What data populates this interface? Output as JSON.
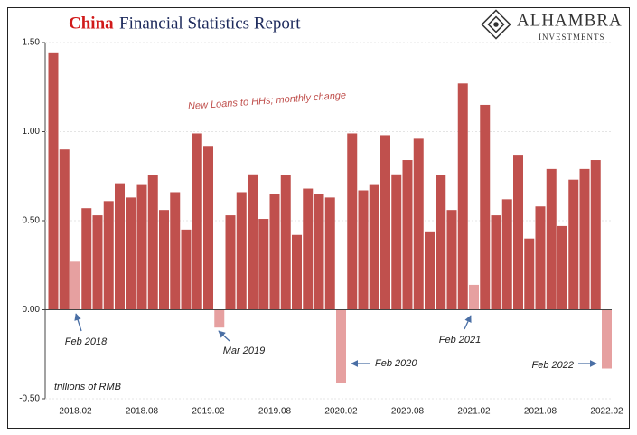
{
  "chart_data": {
    "type": "bar",
    "title_highlight": "China",
    "title": "Financial Statistics Report",
    "logo": {
      "name": "ALHAMBRA",
      "tagline": "INVESTMENTS"
    },
    "series_label": "New Loans to HHs; monthly change",
    "unit_label": "trillions of RMB",
    "categories": [
      null,
      null,
      "2018.02",
      null,
      null,
      null,
      null,
      null,
      "2018.08",
      null,
      null,
      null,
      null,
      null,
      "2019.02",
      null,
      null,
      null,
      null,
      null,
      "2019.08",
      null,
      null,
      null,
      null,
      null,
      "2020.02",
      null,
      null,
      null,
      null,
      null,
      "2020.08",
      null,
      null,
      null,
      null,
      null,
      "2021.02",
      null,
      null,
      null,
      null,
      null,
      "2021.08",
      null,
      null,
      null,
      null,
      null,
      "2022.02"
    ],
    "values": [
      1.44,
      0.9,
      0.27,
      0.57,
      0.53,
      0.61,
      0.71,
      0.63,
      0.7,
      0.755,
      0.56,
      0.66,
      0.45,
      0.99,
      0.92,
      -0.1,
      0.53,
      0.66,
      0.76,
      0.51,
      0.65,
      0.755,
      0.42,
      0.68,
      0.65,
      0.63,
      -0.41,
      0.99,
      0.67,
      0.7,
      0.98,
      0.76,
      0.84,
      0.96,
      0.44,
      0.755,
      0.56,
      1.27,
      0.14,
      1.15,
      0.53,
      0.62,
      0.87,
      0.4,
      0.58,
      0.79,
      0.47,
      0.73,
      0.79,
      0.84,
      -0.33
    ],
    "colors": [
      "#c0504d",
      "#c0504d",
      "#e6a0a0",
      "#c0504d",
      "#c0504d",
      "#c0504d",
      "#c0504d",
      "#c0504d",
      "#c0504d",
      "#c0504d",
      "#c0504d",
      "#c0504d",
      "#c0504d",
      "#c0504d",
      "#c0504d",
      "#e6a0a0",
      "#c0504d",
      "#c0504d",
      "#c0504d",
      "#c0504d",
      "#c0504d",
      "#c0504d",
      "#c0504d",
      "#c0504d",
      "#c0504d",
      "#c0504d",
      "#e6a0a0",
      "#c0504d",
      "#c0504d",
      "#c0504d",
      "#c0504d",
      "#c0504d",
      "#c0504d",
      "#c0504d",
      "#c0504d",
      "#c0504d",
      "#c0504d",
      "#c0504d",
      "#e6a0a0",
      "#c0504d",
      "#c0504d",
      "#c0504d",
      "#c0504d",
      "#c0504d",
      "#c0504d",
      "#c0504d",
      "#c0504d",
      "#c0504d",
      "#c0504d",
      "#c0504d",
      "#e6a0a0"
    ],
    "ylim": [
      -0.5,
      1.5
    ],
    "yticks": [
      {
        "value": 1.5,
        "label": "1.50"
      },
      {
        "value": 1,
        "label": "1.00"
      },
      {
        "value": 0.5,
        "label": "0.50"
      },
      {
        "value": 0,
        "label": "0.00"
      },
      {
        "value": -0.5,
        "label": "-0.50"
      }
    ],
    "grid": true,
    "annotations": [
      "Feb 2018",
      "Mar 2019",
      "Feb 2020",
      "Feb 2021",
      "Feb 2022"
    ]
  }
}
